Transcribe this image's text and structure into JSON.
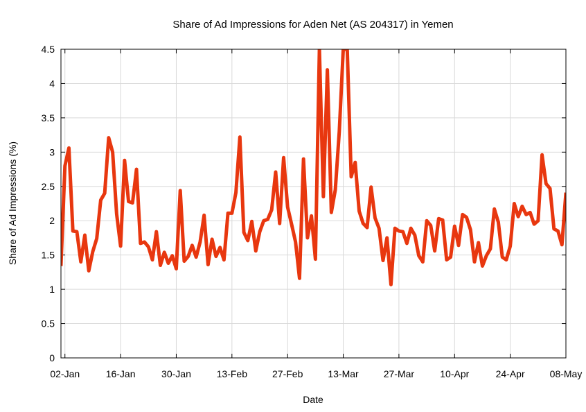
{
  "chart_data": {
    "type": "line",
    "title": "Share of Ad Impressions for Aden Net (AS 204317) in Yemen",
    "xlabel": "Date",
    "ylabel": "Share of Ad Impressions (%)",
    "ylim": [
      0,
      4.5
    ],
    "xlim": [
      "2015-01-01",
      "2015-05-08"
    ],
    "y_ticks": [
      "0",
      "0.5",
      "1",
      "1.5",
      "2",
      "2.5",
      "3",
      "3.5",
      "4",
      "4.5"
    ],
    "x_ticks": [
      {
        "date": "2015-01-02",
        "label": "02-Jan"
      },
      {
        "date": "2015-01-16",
        "label": "16-Jan"
      },
      {
        "date": "2015-01-30",
        "label": "30-Jan"
      },
      {
        "date": "2015-02-13",
        "label": "13-Feb"
      },
      {
        "date": "2015-02-27",
        "label": "27-Feb"
      },
      {
        "date": "2015-03-13",
        "label": "13-Mar"
      },
      {
        "date": "2015-03-27",
        "label": "27-Mar"
      },
      {
        "date": "2015-04-10",
        "label": "10-Apr"
      },
      {
        "date": "2015-04-24",
        "label": "24-Apr"
      },
      {
        "date": "2015-05-08",
        "label": "08-May"
      }
    ],
    "grid": true,
    "series": [
      {
        "color": "#e8370f",
        "start_date": "2015-01-01",
        "values": [
          1.34,
          2.8,
          3.06,
          1.85,
          1.84,
          1.4,
          1.79,
          1.27,
          1.55,
          1.74,
          2.3,
          2.4,
          3.21,
          3.0,
          2.1,
          1.63,
          2.88,
          2.28,
          2.26,
          2.75,
          1.67,
          1.69,
          1.62,
          1.43,
          1.84,
          1.35,
          1.54,
          1.38,
          1.49,
          1.3,
          2.44,
          1.41,
          1.48,
          1.64,
          1.47,
          1.69,
          2.08,
          1.36,
          1.73,
          1.48,
          1.61,
          1.43,
          2.11,
          2.11,
          2.41,
          3.22,
          1.83,
          1.71,
          1.99,
          1.56,
          1.84,
          2.0,
          2.02,
          2.16,
          2.71,
          1.96,
          2.92,
          2.2,
          1.95,
          1.69,
          1.16,
          2.9,
          1.75,
          2.07,
          1.44,
          4.5,
          2.35,
          4.2,
          2.12,
          2.45,
          3.3,
          4.5,
          4.5,
          2.64,
          2.85,
          2.14,
          1.96,
          1.9,
          2.49,
          2.04,
          1.89,
          1.42,
          1.75,
          1.07,
          1.89,
          1.85,
          1.84,
          1.67,
          1.89,
          1.79,
          1.49,
          1.4,
          2.0,
          1.93,
          1.56,
          2.03,
          2.01,
          1.43,
          1.47,
          1.92,
          1.64,
          2.09,
          2.05,
          1.87,
          1.4,
          1.68,
          1.34,
          1.49,
          1.59,
          2.17,
          1.98,
          1.47,
          1.43,
          1.63,
          2.25,
          2.06,
          2.21,
          2.09,
          2.12,
          1.95,
          2.0,
          2.96,
          2.54,
          2.47,
          1.88,
          1.85,
          1.65,
          2.41
        ]
      }
    ]
  }
}
